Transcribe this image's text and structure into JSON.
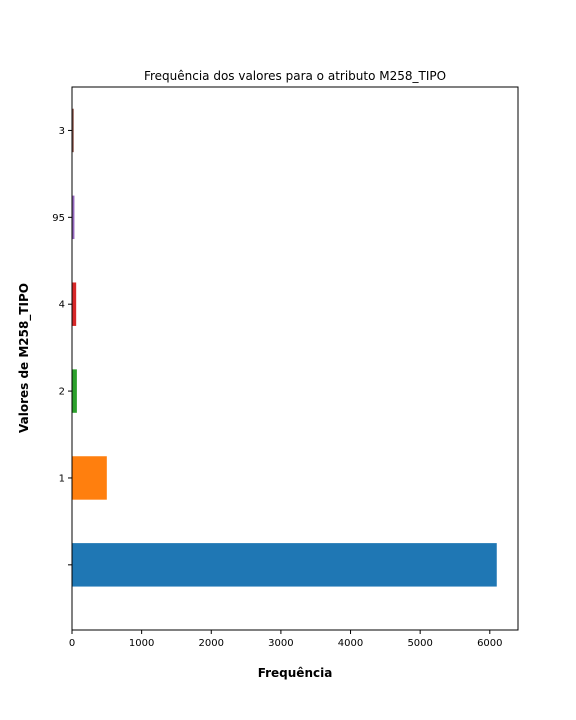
{
  "chart_data": {
    "type": "bar",
    "orientation": "horizontal",
    "title": "Frequência dos valores para o atributo M258_TIPO",
    "xlabel": "Frequência",
    "ylabel": "Valores de M258_TIPO",
    "categories": [
      " ",
      "1",
      "2",
      "4",
      "95",
      "3"
    ],
    "values": [
      6100,
      500,
      70,
      60,
      35,
      25
    ],
    "colors": [
      "#1f77b4",
      "#ff7f0e",
      "#2ca02c",
      "#d62728",
      "#9467bd",
      "#8c564b"
    ],
    "xlim": [
      0,
      6405
    ],
    "xticks": [
      0,
      1000,
      2000,
      3000,
      4000,
      5000,
      6000
    ],
    "xtick_labels": [
      "0",
      "1000",
      "2000",
      "3000",
      "4000",
      "5000",
      "6000"
    ],
    "grid": false,
    "legend": "none"
  }
}
